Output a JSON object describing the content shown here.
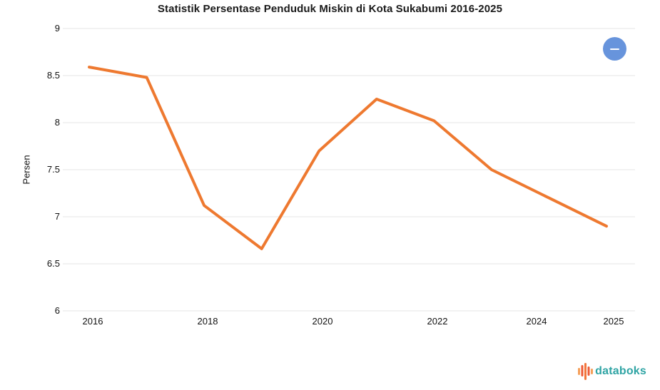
{
  "title": "Statistik Persentase Penduduk Miskin di Kota Sukabumi 2016-2025",
  "menu_button": {
    "icon": "minus-icon",
    "color": "#6794dc"
  },
  "chart_data": {
    "type": "line",
    "x": [
      2016,
      2017,
      2018,
      2019,
      2020,
      2021,
      2022,
      2023,
      2024,
      2025
    ],
    "values": [
      8.59,
      8.48,
      7.12,
      6.66,
      7.7,
      8.25,
      8.02,
      7.5,
      7.2,
      6.9
    ],
    "title": "Statistik Persentase Penduduk Miskin di Kota Sukabumi 2016-2025",
    "xlabel": "",
    "ylabel": "Persen",
    "ylim": [
      6,
      9
    ],
    "yticks": [
      9,
      8.5,
      8,
      7.5,
      7,
      6.5,
      6
    ],
    "ytick_labels": [
      "9",
      "8.5",
      "8",
      "7.5",
      "7",
      "6.5",
      "6"
    ],
    "xtick_labels": [
      "2016",
      "2018",
      "2020",
      "2022",
      "2024",
      "2025"
    ],
    "grid": true,
    "legend": false,
    "line_color": "#ee7930",
    "grid_color": "#e5e5e5"
  },
  "footer": {
    "logo_text": "databoks",
    "logo_icon": "waveform-bars-icon",
    "logo_color": "#2fa4a4",
    "logo_bar_colors": [
      "#f5a05a",
      "#ee5a35",
      "#f2763b",
      "#ee5a35",
      "#f5a05a"
    ]
  }
}
